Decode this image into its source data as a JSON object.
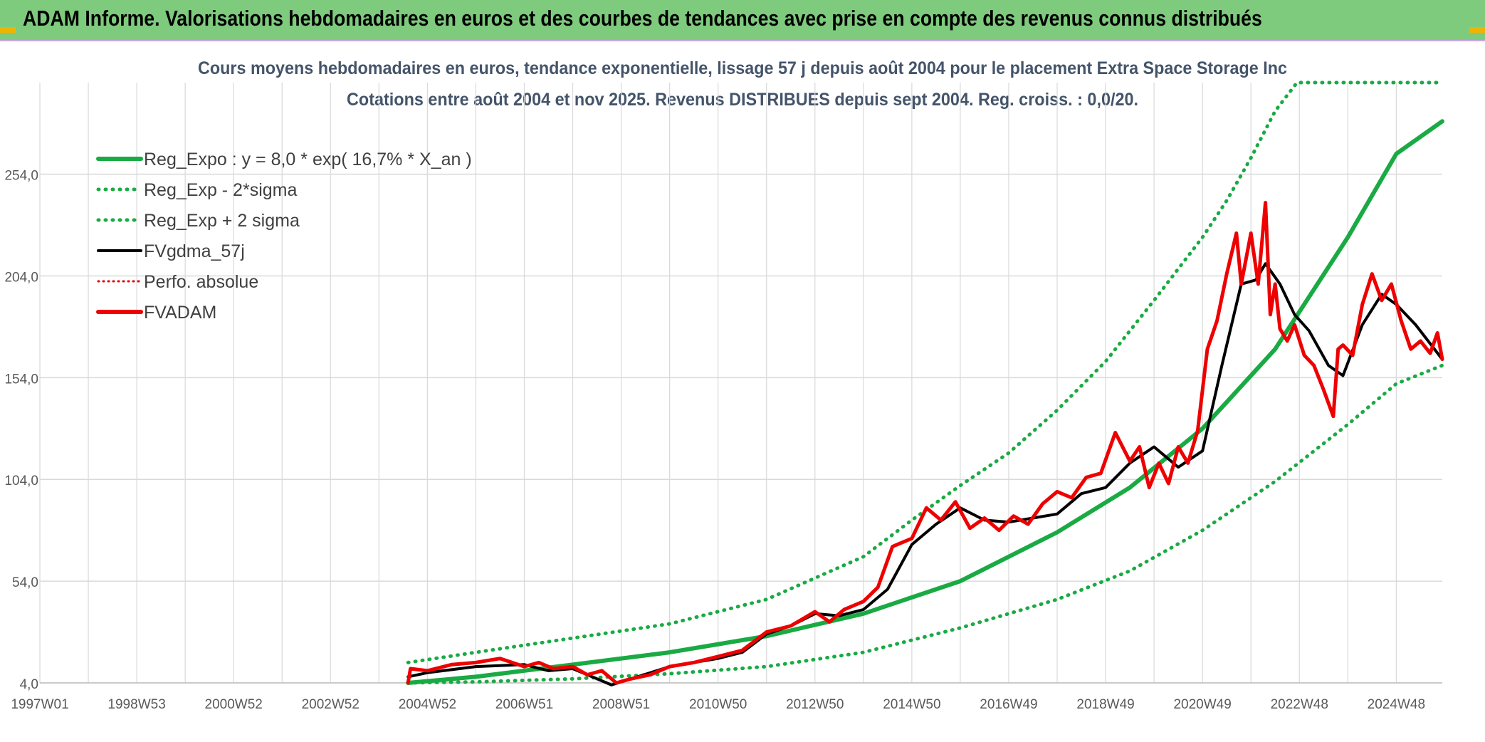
{
  "page": {
    "title": "ADAM Informe. Valorisations hebdomadaires en euros et des courbes de tendances avec prise en compte des revenus connus distribués"
  },
  "colors": {
    "banner": "#7ecb7e",
    "reg_expo": "#1aaa44",
    "sigma": "#1aaa44",
    "fvgdma": "#000000",
    "perfo": "#e00000",
    "fvadam": "#ee0000",
    "grid": "#d9d9d9"
  },
  "chart_data": {
    "type": "line",
    "title": "Cours moyens hebdomadaires en euros, tendance exponentielle, lissage 57 j depuis août 2004 pour le placement Extra Space Storage Inc",
    "subtitle": "Cotations entre août 2004 et nov 2025. Revenus DISTRIBUES depuis sept 2004. Reg. croiss. : 0,0/20.",
    "xlabel": "",
    "ylabel": "",
    "xlim": [
      1997.0,
      2025.95
    ],
    "ylim": [
      4,
      299
    ],
    "y_ticks": [
      4,
      54,
      104,
      154,
      204,
      254
    ],
    "y_tick_labels": [
      "4,0",
      "54,0",
      "104,0",
      "154,0",
      "204,0",
      "254,0"
    ],
    "x_ticks": [
      1997.0,
      1999.0,
      2001.0,
      2003.0,
      2005.0,
      2007.0,
      2009.0,
      2011.0,
      2013.0,
      2015.0,
      2017.0,
      2019.0,
      2021.0,
      2023.0,
      2025.0
    ],
    "x_tick_labels": [
      "1997W01",
      "1998W53",
      "2000W52",
      "2002W52",
      "2004W52",
      "2006W51",
      "2008W51",
      "2010W50",
      "2012W50",
      "2014W50",
      "2016W49",
      "2018W49",
      "2020W49",
      "2022W48",
      "2024W48"
    ],
    "grid": true,
    "legend_position": "top-left",
    "legend": [
      {
        "label": "Reg_Expo : y = 8,0 * exp( 16,7% *  X_an )",
        "style": "solid-thick",
        "color": "#1aaa44"
      },
      {
        "label": "Reg_Exp - 2*sigma",
        "style": "dotted",
        "color": "#1aaa44"
      },
      {
        "label": "Reg_Exp + 2 sigma",
        "style": "dotted",
        "color": "#1aaa44"
      },
      {
        "label": "FVgdma_57j",
        "style": "solid",
        "color": "#000000"
      },
      {
        "label": "Perfo. absolue",
        "style": "dotted-thin",
        "color": "#e00000"
      },
      {
        "label": "FVADAM",
        "style": "solid-thick",
        "color": "#ee0000"
      }
    ],
    "reg_expo": {
      "a": 8.0,
      "growth": 0.167
    },
    "series": [
      {
        "name": "Reg_Expo : y = 8,0 * exp( 16,7% *  X_an )",
        "x": [
          2004.6,
          2006.0,
          2008.0,
          2010.0,
          2012.0,
          2014.0,
          2016.0,
          2018.0,
          2019.5,
          2021.0,
          2022.5,
          2024.0,
          2025.0,
          2025.95
        ],
        "values": [
          4,
          7,
          13,
          19,
          27,
          38,
          54,
          78,
          100,
          129,
          168,
          223,
          264,
          280
        ]
      },
      {
        "name": "Reg_Exp - 2*sigma",
        "x": [
          2004.6,
          2006.0,
          2008.0,
          2010.0,
          2012.0,
          2014.0,
          2016.0,
          2018.0,
          2019.5,
          2021.0,
          2022.5,
          2024.0,
          2025.0,
          2025.95
        ],
        "values": [
          4,
          4.5,
          6,
          8.5,
          12,
          19,
          31,
          45,
          59,
          79,
          103,
          131,
          151,
          160
        ]
      },
      {
        "name": "Reg_Exp + 2 sigma",
        "x": [
          2004.6,
          2006.0,
          2008.0,
          2010.0,
          2012.0,
          2014.0,
          2015.0,
          2016.0,
          2017.0,
          2018.0,
          2019.0,
          2020.0,
          2021.0,
          2021.5,
          2022.0,
          2022.5,
          2022.95,
          2025.95
        ],
        "values": [
          14,
          19,
          26,
          33,
          45,
          66,
          84,
          101,
          117,
          138,
          162,
          192,
          223,
          241,
          262,
          285,
          299,
          299
        ]
      },
      {
        "name": "FVgdma_57j",
        "x": [
          2004.6,
          2005.0,
          2006.0,
          2007.0,
          2007.5,
          2008.0,
          2008.4,
          2008.8,
          2009.2,
          2010.0,
          2011.0,
          2011.5,
          2012.0,
          2012.5,
          2013.0,
          2013.5,
          2014.0,
          2014.5,
          2015.0,
          2015.5,
          2016.0,
          2016.5,
          2017.0,
          2017.5,
          2018.0,
          2018.5,
          2019.0,
          2019.5,
          2020.0,
          2020.5,
          2021.0,
          2021.4,
          2021.8,
          2022.1,
          2022.3,
          2022.6,
          2022.9,
          2023.2,
          2023.6,
          2023.9,
          2024.3,
          2024.7,
          2025.0,
          2025.4,
          2025.95
        ],
        "values": [
          7,
          9,
          12,
          13,
          10,
          11,
          7,
          3,
          6,
          12,
          16,
          19,
          28,
          32,
          38,
          37,
          40,
          50,
          72,
          82,
          90,
          84,
          83,
          85,
          87,
          97,
          100,
          112,
          120,
          110,
          118,
          160,
          200,
          202,
          210,
          200,
          185,
          177,
          160,
          155,
          180,
          195,
          190,
          180,
          163
        ]
      },
      {
        "name": "FVADAM",
        "x": [
          2004.6,
          2004.65,
          2005.0,
          2005.5,
          2006.0,
          2006.5,
          2007.0,
          2007.3,
          2007.6,
          2008.0,
          2008.3,
          2008.6,
          2008.9,
          2009.2,
          2009.6,
          2010.0,
          2010.5,
          2011.0,
          2011.5,
          2012.0,
          2012.5,
          2013.0,
          2013.3,
          2013.6,
          2014.0,
          2014.3,
          2014.6,
          2015.0,
          2015.3,
          2015.6,
          2015.9,
          2016.2,
          2016.5,
          2016.8,
          2017.1,
          2017.4,
          2017.7,
          2018.0,
          2018.3,
          2018.6,
          2018.9,
          2019.2,
          2019.5,
          2019.7,
          2019.9,
          2020.1,
          2020.3,
          2020.5,
          2020.7,
          2020.9,
          2021.1,
          2021.3,
          2021.5,
          2021.7,
          2021.8,
          2022.0,
          2022.15,
          2022.3,
          2022.4,
          2022.5,
          2022.6,
          2022.75,
          2022.9,
          2023.1,
          2023.3,
          2023.5,
          2023.7,
          2023.8,
          2023.9,
          2024.1,
          2024.3,
          2024.5,
          2024.7,
          2024.9,
          2025.1,
          2025.3,
          2025.5,
          2025.7,
          2025.85,
          2025.95
        ],
        "values": [
          4,
          11,
          10,
          13,
          14,
          16,
          12,
          14,
          11,
          12,
          8,
          10,
          4,
          6,
          8,
          12,
          14,
          17,
          20,
          29,
          32,
          39,
          34,
          40,
          44,
          51,
          71,
          75,
          90,
          84,
          93,
          80,
          85,
          79,
          86,
          82,
          92,
          98,
          95,
          105,
          107,
          127,
          113,
          120,
          100,
          112,
          102,
          120,
          112,
          128,
          168,
          182,
          205,
          225,
          200,
          225,
          200,
          240,
          185,
          200,
          178,
          172,
          180,
          165,
          160,
          148,
          135,
          168,
          170,
          165,
          190,
          205,
          192,
          200,
          182,
          168,
          172,
          166,
          176,
          163
        ]
      }
    ]
  }
}
